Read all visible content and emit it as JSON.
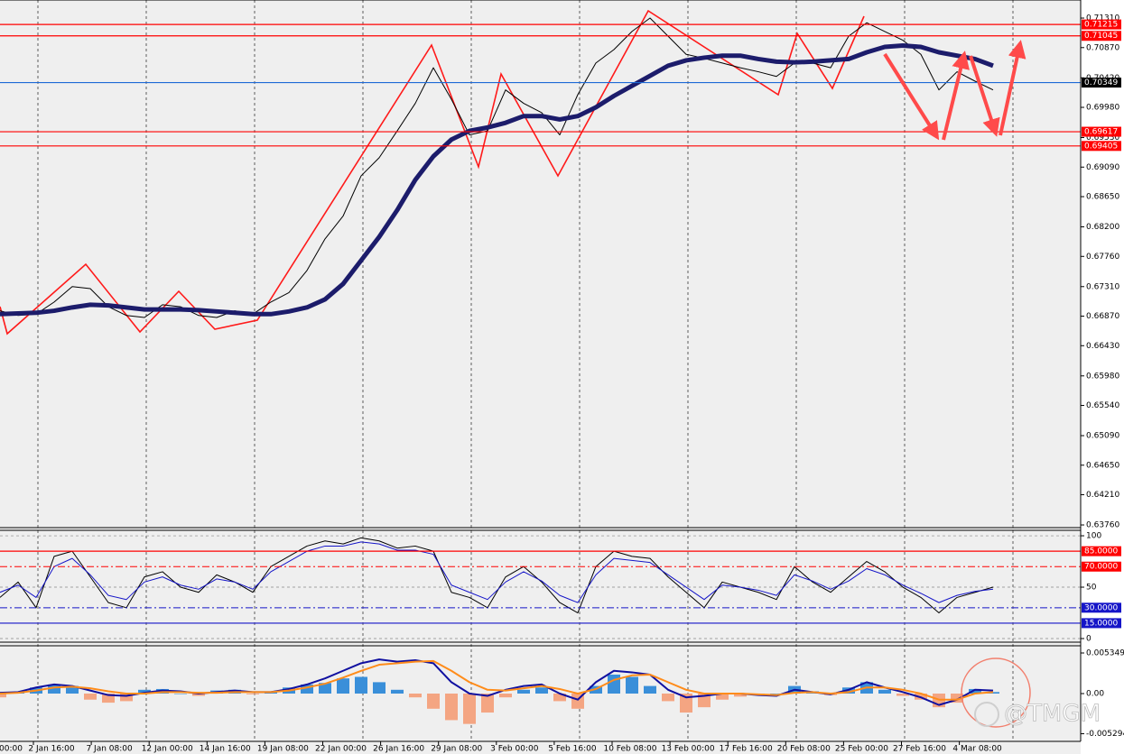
{
  "chart_data": [
    {
      "type": "line",
      "ylim": [
        0.6372,
        0.71579
      ],
      "yticks": [
        {
          "value": 0.7131,
          "label": "0.71310"
        },
        {
          "value": 0.7087,
          "label": "0.70870"
        },
        {
          "value": 0.7042,
          "label": "0.70420"
        },
        {
          "value": 0.6998,
          "label": "0.69980"
        },
        {
          "value": 0.6953,
          "label": "0.69530"
        },
        {
          "value": 0.6909,
          "label": "0.69090"
        },
        {
          "value": 0.6865,
          "label": "0.68650"
        },
        {
          "value": 0.682,
          "label": "0.68200"
        },
        {
          "value": 0.6776,
          "label": "0.67760"
        },
        {
          "value": 0.6731,
          "label": "0.67310"
        },
        {
          "value": 0.6687,
          "label": "0.66870"
        },
        {
          "value": 0.6643,
          "label": "0.66430"
        },
        {
          "value": 0.6598,
          "label": "0.65980"
        },
        {
          "value": 0.6554,
          "label": "0.65540"
        },
        {
          "value": 0.6509,
          "label": "0.65090"
        },
        {
          "value": 0.6465,
          "label": "0.64650"
        },
        {
          "value": 0.6421,
          "label": "0.64210"
        },
        {
          "value": 0.6376,
          "label": "0.63760"
        }
      ],
      "levels": [
        {
          "value": 0.71215,
          "color": "#ff0000"
        },
        {
          "value": 0.71045,
          "color": "#ff0000"
        },
        {
          "value": 0.70349,
          "color": "#1e6ad6"
        },
        {
          "value": 0.69617,
          "color": "#ff0000"
        },
        {
          "value": 0.69405,
          "color": "#ff0000"
        }
      ],
      "series": [
        {
          "color": "#000000",
          "width": 1,
          "values": [
            0.6695,
            0.6688,
            0.669,
            0.6708,
            0.6731,
            0.6728,
            0.6701,
            0.6688,
            0.6685,
            0.6704,
            0.6701,
            0.6688,
            0.6685,
            0.6695,
            0.669,
            0.6708,
            0.6722,
            0.6755,
            0.6802,
            0.6836,
            0.6896,
            0.6923,
            0.6963,
            0.7004,
            0.7057,
            0.701,
            0.6957,
            0.6963,
            0.7024,
            0.7004,
            0.699,
            0.6957,
            0.7017,
            0.7064,
            0.7084,
            0.7111,
            0.7131,
            0.7104,
            0.7077,
            0.7071,
            0.7064,
            0.7057,
            0.7051,
            0.7044,
            0.7064,
            0.7064,
            0.7057,
            0.7104,
            0.7124,
            0.7111,
            0.7098,
            0.7077,
            0.7024,
            0.7051,
            0.7037,
            0.7024
          ]
        },
        {
          "color": "#1c1c6b",
          "width": 5,
          "values": [
            0.669,
            0.6691,
            0.6692,
            0.6695,
            0.67,
            0.6704,
            0.6703,
            0.67,
            0.6697,
            0.6697,
            0.6697,
            0.6696,
            0.6694,
            0.6692,
            0.669,
            0.669,
            0.6694,
            0.67,
            0.6712,
            0.6735,
            0.677,
            0.6805,
            0.6845,
            0.689,
            0.6925,
            0.695,
            0.6963,
            0.6968,
            0.6975,
            0.6985,
            0.6985,
            0.698,
            0.6985,
            0.6998,
            0.7015,
            0.703,
            0.7045,
            0.706,
            0.7068,
            0.7072,
            0.7075,
            0.7075,
            0.707,
            0.7066,
            0.7065,
            0.7066,
            0.7068,
            0.707,
            0.708,
            0.7088,
            0.709,
            0.7088,
            0.708,
            0.7075,
            0.707,
            0.706
          ]
        }
      ]
    },
    {
      "type": "line",
      "ylim": [
        -3.5,
        105.3
      ],
      "yticks": [
        0,
        50,
        100
      ],
      "grid": true,
      "levels": [
        {
          "value": 85,
          "label": "85.0000",
          "color": "#ff0000"
        },
        {
          "value": 70,
          "label": "70.0000",
          "color": "#ff0000",
          "dash": true
        },
        {
          "value": 30,
          "label": "30.0000",
          "color": "#1515c8",
          "dash": true
        },
        {
          "value": 15,
          "label": "15.0000",
          "color": "#1515c8"
        }
      ],
      "series": [
        {
          "color": "#000000",
          "width": 1,
          "values": [
            40,
            55,
            30,
            80,
            85,
            60,
            35,
            30,
            60,
            65,
            50,
            45,
            62,
            55,
            45,
            70,
            80,
            90,
            95,
            92,
            98,
            95,
            88,
            90,
            85,
            45,
            40,
            30,
            60,
            70,
            55,
            35,
            25,
            70,
            85,
            80,
            78,
            60,
            45,
            30,
            55,
            50,
            45,
            38,
            70,
            55,
            45,
            60,
            75,
            65,
            50,
            40,
            25,
            40,
            45,
            50
          ]
        },
        {
          "color": "#1515c8",
          "width": 1,
          "values": [
            45,
            52,
            40,
            70,
            78,
            62,
            42,
            38,
            55,
            60,
            52,
            48,
            58,
            55,
            48,
            65,
            75,
            85,
            90,
            90,
            94,
            92,
            86,
            86,
            82,
            52,
            45,
            38,
            55,
            65,
            56,
            42,
            35,
            62,
            78,
            76,
            74,
            62,
            50,
            38,
            52,
            50,
            47,
            42,
            62,
            56,
            48,
            56,
            68,
            62,
            52,
            44,
            35,
            42,
            46,
            48
          ]
        }
      ]
    },
    {
      "type": "bar",
      "ylim": [
        -0.0063,
        0.0063
      ],
      "yticks": [
        0.005349,
        {
          "value": 0,
          "label": "0.00"
        },
        -0.005294
      ],
      "series": [
        {
          "type": "bar",
          "color": "#3a8fd9",
          "negative_color": "#f4a582",
          "values": [
            -0.0005,
            0.0002,
            0.0008,
            0.0012,
            0.001,
            -0.0008,
            -0.0012,
            -0.001,
            0.0005,
            0.0006,
            0,
            -0.0003,
            0.0004,
            0.0005,
            -0.0001,
            0.0003,
            0.0008,
            0.0012,
            0.0014,
            0.002,
            0.0022,
            0.0015,
            0.0005,
            -0.0005,
            -0.002,
            -0.0035,
            -0.004,
            -0.0025,
            -0.0005,
            0.0005,
            0.0008,
            -0.001,
            -0.002,
            0.001,
            0.0025,
            0.0022,
            0.001,
            -0.001,
            -0.0025,
            -0.0018,
            -0.0008,
            -0.0004,
            -0.0002,
            0,
            0.001,
            0.0003,
            -0.0002,
            0.0008,
            0.0015,
            0.0005,
            -0.0003,
            -0.0008,
            -0.0018,
            -0.0012,
            0.0006,
            0.0002
          ]
        },
        {
          "type": "line",
          "color": "#1010a0",
          "width": 2,
          "values": [
            0.0001,
            0.0002,
            0.0008,
            0.0012,
            0.001,
            0.0004,
            -0.0002,
            -0.0003,
            0.0001,
            0.0004,
            0.0003,
            0,
            0.0002,
            0.0004,
            0.0002,
            0.0002,
            0.0006,
            0.0012,
            0.002,
            0.003,
            0.004,
            0.0045,
            0.0042,
            0.0044,
            0.004,
            0.0015,
            0,
            -0.0003,
            0.0005,
            0.001,
            0.0012,
            0,
            -0.0008,
            0.0015,
            0.003,
            0.0028,
            0.0025,
            0.0005,
            -0.0005,
            -0.0003,
            0,
            0,
            -0.0002,
            -0.0003,
            0.0005,
            0.0002,
            -0.0001,
            0.0005,
            0.0015,
            0.0008,
            0.0002,
            -0.0005,
            -0.0015,
            -0.0008,
            0.0005,
            0.0004
          ]
        },
        {
          "type": "line",
          "color": "#ff8c1a",
          "width": 2,
          "values": [
            0,
            0.0001,
            0.0004,
            0.0008,
            0.0009,
            0.0007,
            0.0003,
            0,
            0,
            0.0002,
            0.0002,
            0.0001,
            0.0001,
            0.0002,
            0.0002,
            0.0002,
            0.0004,
            0.0008,
            0.0013,
            0.0021,
            0.003,
            0.0038,
            0.004,
            0.0042,
            0.0043,
            0.003,
            0.0015,
            0.0005,
            0.0004,
            0.0007,
            0.001,
            0.0006,
            0,
            0.0006,
            0.0018,
            0.0024,
            0.0025,
            0.0015,
            0.0005,
            0,
            0,
            0,
            -0.0001,
            -0.0002,
            0.0001,
            0.0002,
            0,
            0.0002,
            0.0008,
            0.0008,
            0.0005,
            0,
            -0.0008,
            -0.0008,
            0,
            0.0002
          ]
        }
      ],
      "time_labels": [
        "00:00",
        "2 Jan 16:00",
        "7 Jan 08:00",
        "12 Jan 00:00",
        "14 Jan 16:00",
        "19 Jan 08:00",
        "22 Jan 00:00",
        "26 Jan 16:00",
        "29 Jan 08:00",
        "3 Feb 00:00",
        "5 Feb 16:00",
        "10 Feb 08:00",
        "13 Feb 00:00",
        "17 Feb 16:00",
        "20 Feb 08:00",
        "25 Feb 00:00",
        "27 Feb 16:00",
        "4 Mar 08:00"
      ],
      "watermark": "@TMGM"
    }
  ]
}
